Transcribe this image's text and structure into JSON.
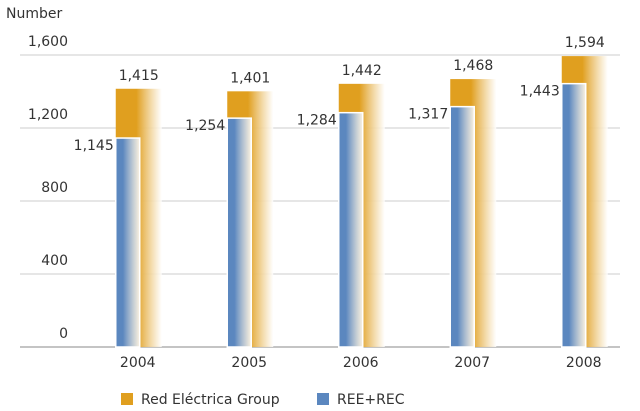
{
  "chart_data": {
    "type": "bar",
    "y_label": "Number",
    "categories": [
      "2004",
      "2005",
      "2006",
      "2007",
      "2008"
    ],
    "series": [
      {
        "name": "Red Eléctrica Group",
        "color": "#e09f1f",
        "values": [
          1415,
          1401,
          1442,
          1468,
          1594
        ],
        "value_labels": [
          "1,415",
          "1,401",
          "1,442",
          "1,468",
          "1,594"
        ]
      },
      {
        "name": "REE+REC",
        "color": "#5b87bf",
        "values": [
          1145,
          1254,
          1284,
          1317,
          1443
        ],
        "value_labels": [
          "1,145",
          "1,254",
          "1,284",
          "1,317",
          "1,443"
        ]
      }
    ],
    "ylim": [
      0,
      1600
    ],
    "yticks": [
      0,
      400,
      800,
      {
        "value": 1200,
        "label": "1,200"
      },
      {
        "value": 1600,
        "label": "1,600"
      }
    ],
    "grid": true
  }
}
